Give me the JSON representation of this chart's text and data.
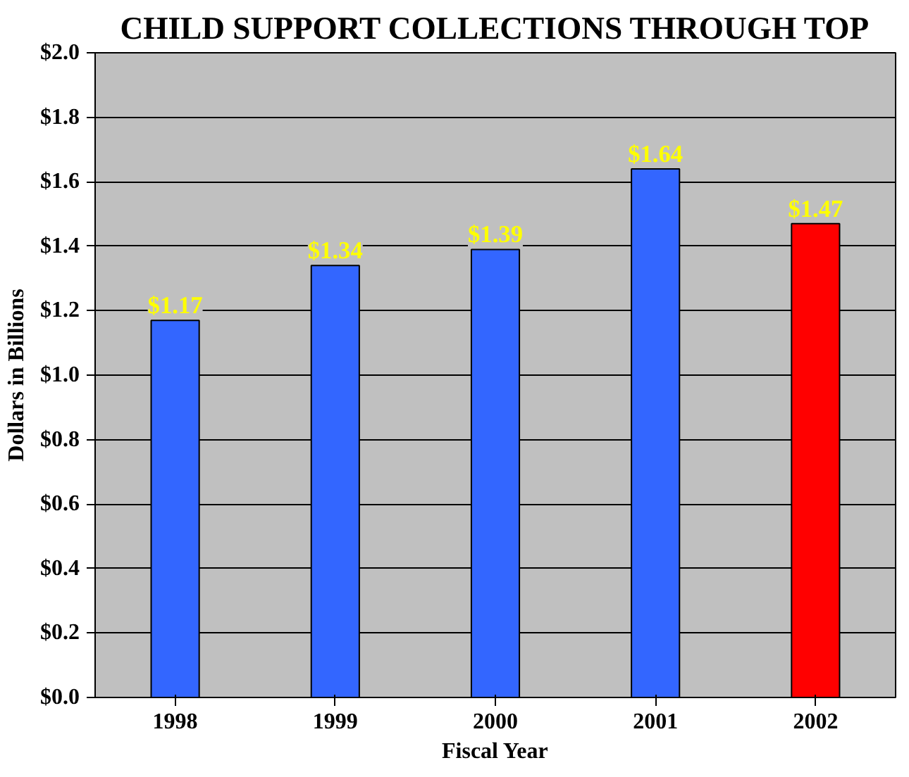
{
  "chart_data": {
    "type": "bar",
    "title": "CHILD SUPPORT COLLECTIONS THROUGH TOP",
    "xlabel": "Fiscal Year",
    "ylabel": "Dollars in Billions",
    "categories": [
      "1998",
      "1999",
      "2000",
      "2001",
      "2002"
    ],
    "values": [
      1.17,
      1.34,
      1.39,
      1.64,
      1.47
    ],
    "colors": [
      "#3366ff",
      "#3366ff",
      "#3366ff",
      "#3366ff",
      "#ff0000"
    ],
    "value_labels": [
      "$1.17",
      "$1.34",
      "$1.39",
      "$1.64",
      "$1.47"
    ],
    "ylim": [
      0,
      2.0
    ],
    "yticks": [
      {
        "value": 0,
        "label": "$0.0"
      },
      {
        "value": 0.2,
        "label": "$0.2"
      },
      {
        "value": 0.4,
        "label": "$0.4"
      },
      {
        "value": 0.6,
        "label": "$0.6"
      },
      {
        "value": 0.8,
        "label": "$0.8"
      },
      {
        "value": 1.0,
        "label": "$1.0"
      },
      {
        "value": 1.2,
        "label": "$1.2"
      },
      {
        "value": 1.4,
        "label": "$1.4"
      },
      {
        "value": 1.6,
        "label": "$1.6"
      },
      {
        "value": 1.8,
        "label": "$1.8"
      },
      {
        "value": 2.0,
        "label": "$2.0"
      }
    ],
    "grid": "y"
  }
}
